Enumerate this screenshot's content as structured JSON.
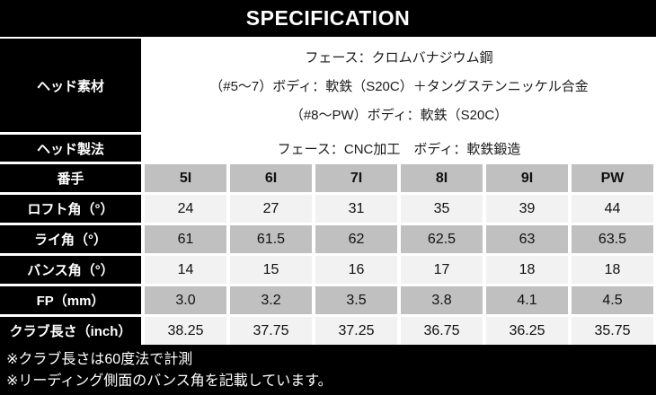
{
  "title": "SPECIFICATION",
  "materials_row": {
    "label": "ヘッド素材",
    "lines": [
      "フェース：クロムバナジウム鋼",
      "（#5～7）ボディ：軟鉄（S20C）＋タングステンニッケル合金",
      "（#8～PW）ボディ：軟鉄（S20C）"
    ]
  },
  "method_row": {
    "label": "ヘッド製法",
    "value": "フェース：CNC加工　ボディ：軟鉄鍛造"
  },
  "spec_table": {
    "header_label": "番手",
    "columns": [
      "5I",
      "6I",
      "7I",
      "8I",
      "9I",
      "PW"
    ],
    "rows": [
      {
        "label": "ロフト角（°）",
        "values": [
          "24",
          "27",
          "31",
          "35",
          "39",
          "44"
        ]
      },
      {
        "label": "ライ角（°）",
        "values": [
          "61",
          "61.5",
          "62",
          "62.5",
          "63",
          "63.5"
        ]
      },
      {
        "label": "バンス角（°）",
        "values": [
          "14",
          "15",
          "16",
          "17",
          "18",
          "18"
        ]
      },
      {
        "label": "FP（mm）",
        "values": [
          "3.0",
          "3.2",
          "3.5",
          "3.8",
          "4.1",
          "4.5"
        ]
      },
      {
        "label": "クラブ長さ（inch）",
        "values": [
          "38.25",
          "37.75",
          "37.25",
          "36.75",
          "36.25",
          "35.75"
        ]
      }
    ]
  },
  "footnotes": [
    "※クラブ長さは60度法で計測",
    "※リーディング側面のバンス角を記載しています。"
  ],
  "colors": {
    "header_bg": "#000000",
    "label_bg": "#000000",
    "col_header_bg": "#c0c0c0",
    "row_gray_bg": "#c0c0c0",
    "row_light_bg": "#f2f2f2",
    "text_light": "#ffffff",
    "text_dark": "#111111"
  }
}
